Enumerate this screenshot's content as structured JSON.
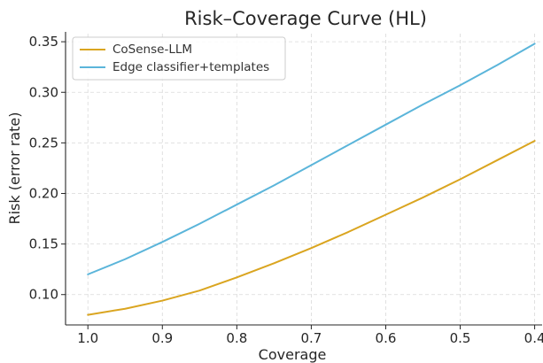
{
  "chart_data": {
    "type": "line",
    "title": "Risk–Coverage Curve (HL)",
    "xlabel": "Coverage",
    "ylabel": "Risk (error rate)",
    "x_reversed": true,
    "xlim": [
      1.03,
      0.39
    ],
    "ylim": [
      0.07,
      0.358
    ],
    "x_ticks": [
      {
        "value": 1.0,
        "label": "1.0"
      },
      {
        "value": 0.9,
        "label": "0.9"
      },
      {
        "value": 0.8,
        "label": "0.8"
      },
      {
        "value": 0.7,
        "label": "0.7"
      },
      {
        "value": 0.6,
        "label": "0.6"
      },
      {
        "value": 0.5,
        "label": "0.5"
      },
      {
        "value": 0.4,
        "label": "0.4"
      }
    ],
    "y_ticks": [
      {
        "value": 0.1,
        "label": "0.10"
      },
      {
        "value": 0.15,
        "label": "0.15"
      },
      {
        "value": 0.2,
        "label": "0.20"
      },
      {
        "value": 0.25,
        "label": "0.25"
      },
      {
        "value": 0.3,
        "label": "0.30"
      },
      {
        "value": 0.35,
        "label": "0.35"
      }
    ],
    "grid": true,
    "legend_position": "top-left",
    "series": [
      {
        "name": "CoSense-LLM",
        "color": "#DAA520",
        "x": [
          1.0,
          0.95,
          0.9,
          0.85,
          0.8,
          0.75,
          0.7,
          0.65,
          0.6,
          0.55,
          0.5,
          0.45,
          0.4
        ],
        "y": [
          0.08,
          0.086,
          0.094,
          0.104,
          0.117,
          0.131,
          0.146,
          0.162,
          0.179,
          0.196,
          0.214,
          0.233,
          0.252
        ]
      },
      {
        "name": "Edge classifier+templates",
        "color": "#5BB5DA",
        "x": [
          1.0,
          0.95,
          0.9,
          0.85,
          0.8,
          0.75,
          0.7,
          0.65,
          0.6,
          0.55,
          0.5,
          0.45,
          0.4
        ],
        "y": [
          0.12,
          0.135,
          0.152,
          0.17,
          0.189,
          0.208,
          0.228,
          0.248,
          0.268,
          0.288,
          0.307,
          0.327,
          0.348
        ]
      }
    ]
  }
}
